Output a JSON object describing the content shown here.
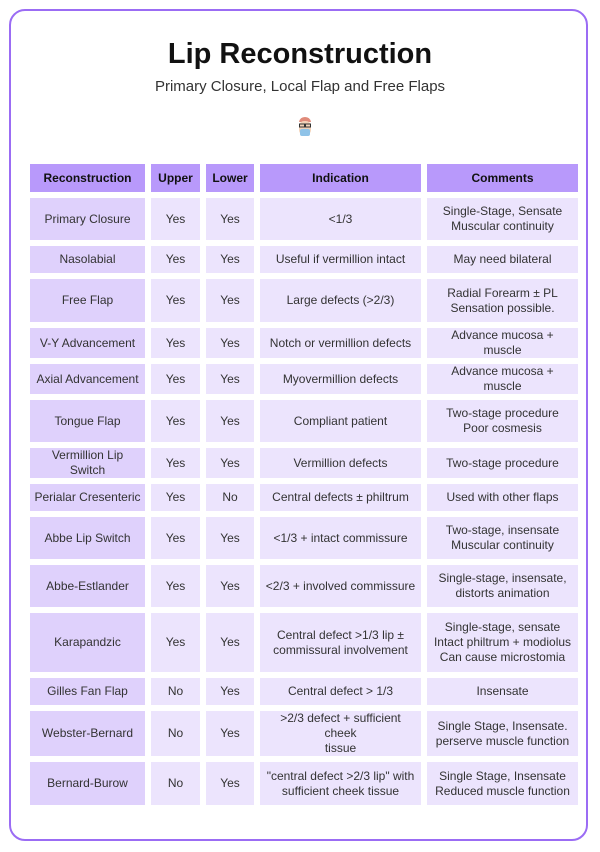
{
  "header": {
    "title": "Lip Reconstruction",
    "subtitle": "Primary Closure, Local Flap and Free Flaps",
    "logo_icon": "doctor-avatar-icon"
  },
  "colors": {
    "border": "#9b6cf4",
    "header_bg": "#b899fb",
    "first_col_bg": "#dfd1fc",
    "cell_bg": "#ece4fd"
  },
  "table": {
    "columns": [
      "Reconstruction",
      "Upper",
      "Lower",
      "Indication",
      "Comments"
    ],
    "rows": [
      [
        "Primary Closure",
        "Yes",
        "Yes",
        "<1/3",
        "Single-Stage, Sensate\nMuscular continuity"
      ],
      [
        "Nasolabial",
        "Yes",
        "Yes",
        "Useful if vermillion intact",
        "May need bilateral"
      ],
      [
        "Free Flap",
        "Yes",
        "Yes",
        "Large defects (>2/3)",
        "Radial Forearm ± PL\nSensation possible."
      ],
      [
        "V-Y Advancement",
        "Yes",
        "Yes",
        "Notch or vermillion defects",
        "Advance mucosa + muscle"
      ],
      [
        "Axial Advancement",
        "Yes",
        "Yes",
        "Myovermillion defects",
        "Advance mucosa + muscle"
      ],
      [
        "Tongue Flap",
        "Yes",
        "Yes",
        "Compliant patient",
        "Two-stage procedure\nPoor cosmesis"
      ],
      [
        "Vermillion Lip Switch",
        "Yes",
        "Yes",
        "Vermillion defects",
        "Two-stage procedure"
      ],
      [
        "Perialar Cresenteric",
        "Yes",
        "No",
        "Central defects ± philtrum",
        "Used with other flaps"
      ],
      [
        "Abbe Lip Switch",
        "Yes",
        "Yes",
        "<1/3 + intact commissure",
        "Two-stage, insensate\nMuscular continuity"
      ],
      [
        "Abbe-Estlander",
        "Yes",
        "Yes",
        "<2/3 + involved commissure",
        "Single-stage, insensate,\ndistorts animation"
      ],
      [
        "Karapandzic",
        "Yes",
        "Yes",
        "Central defect >1/3 lip ±\ncommissural involvement",
        "Single-stage, sensate\nIntact philtrum + modiolus\nCan cause microstomia"
      ],
      [
        "Gilles Fan Flap",
        "No",
        "Yes",
        "Central defect > 1/3",
        "Insensate"
      ],
      [
        "Webster-Bernard",
        "No",
        "Yes",
        ">2/3 defect + sufficient cheek\ntissue",
        "Single Stage, Insensate.\nperserve muscle function"
      ],
      [
        "Bernard-Burow",
        "No",
        "Yes",
        "\"central defect >2/3 lip\" with\nsufficient cheek tissue",
        "Single Stage, Insensate\nReduced muscle function"
      ]
    ]
  }
}
